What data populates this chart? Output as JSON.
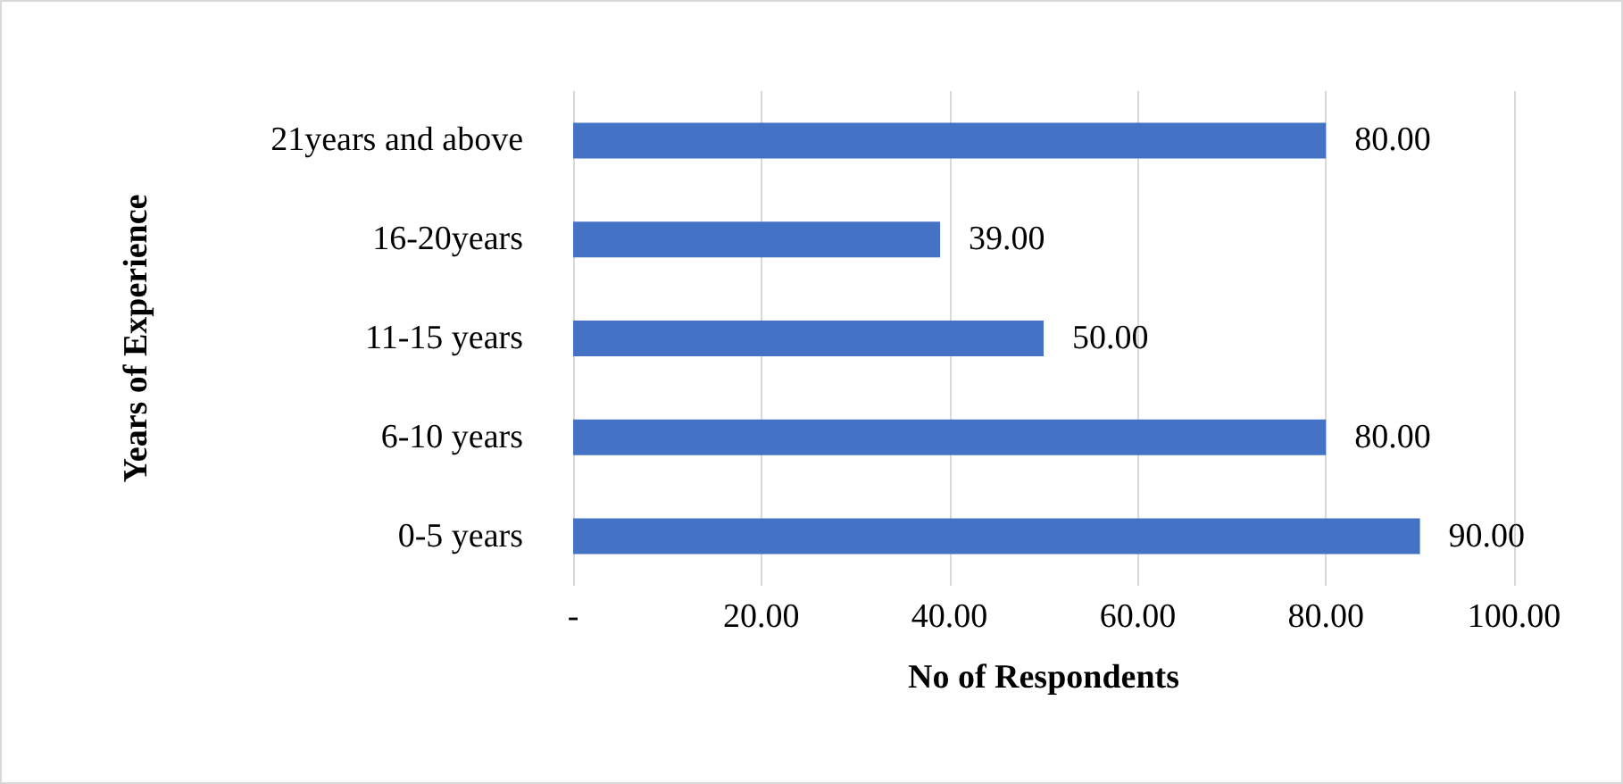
{
  "chart_data": {
    "type": "bar",
    "orientation": "horizontal",
    "xlabel": "No of Respondents",
    "ylabel": "Years of Experience",
    "categories": [
      "21years and above",
      "16-20years",
      "11-15 years",
      "6-10 years",
      "0-5 years"
    ],
    "values": [
      80,
      39,
      50,
      80,
      90
    ],
    "value_labels": [
      "80.00",
      "39.00",
      "50.00",
      "80.00",
      "90.00"
    ],
    "color": "#4472c4",
    "xlim": [
      0,
      100
    ],
    "xticks": [
      {
        "value": 0,
        "label": "-"
      },
      {
        "value": 20,
        "label": "20.00"
      },
      {
        "value": 40,
        "label": "40.00"
      },
      {
        "value": 60,
        "label": "60.00"
      },
      {
        "value": 80,
        "label": "80.00"
      },
      {
        "value": 100,
        "label": "100.00"
      }
    ],
    "grid": "x"
  }
}
